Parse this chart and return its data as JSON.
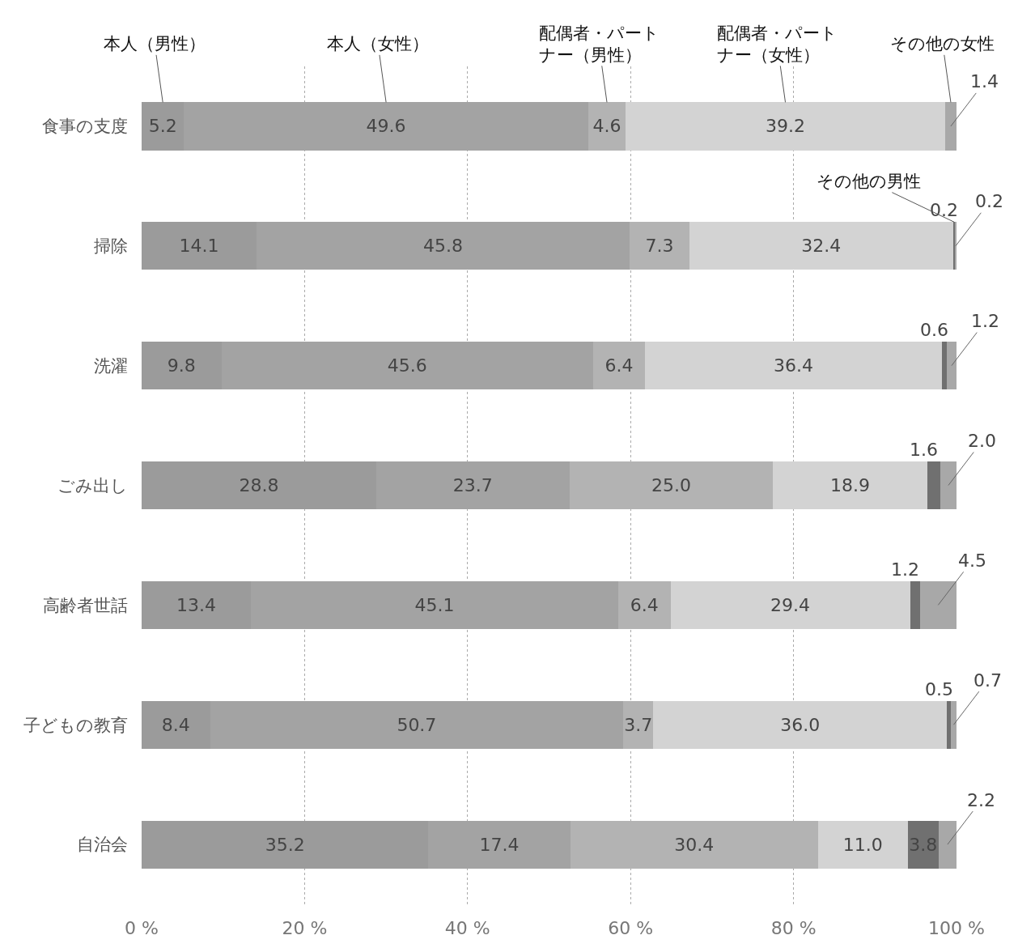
{
  "chart_data": {
    "type": "bar",
    "orientation": "horizontal",
    "stacked": true,
    "categories": [
      "食事の支度",
      "掃除",
      "洗濯",
      "ごみ出し",
      "高齢者世話",
      "子どもの教育",
      "自治会"
    ],
    "series": [
      {
        "name": "本人（男性）",
        "color": "#9b9b9b",
        "values": [
          5.2,
          14.1,
          9.8,
          28.8,
          13.4,
          8.4,
          35.2
        ],
        "value_labels": [
          "5.2",
          "14.1",
          "9.8",
          "28.8",
          "13.4",
          "8.4",
          "35.2"
        ]
      },
      {
        "name": "本人（女性）",
        "color": "#a3a3a3",
        "values": [
          49.6,
          45.8,
          45.6,
          23.7,
          45.1,
          50.7,
          17.4
        ],
        "value_labels": [
          "49.6",
          "45.8",
          "45.6",
          "23.7",
          "45.1",
          "50.7",
          "17.4"
        ]
      },
      {
        "name": "配偶者・パートナー（男性）",
        "color": "#b3b3b3",
        "values": [
          4.6,
          7.3,
          6.4,
          25.0,
          6.4,
          3.7,
          30.4
        ],
        "value_labels": [
          "4.6",
          "7.3",
          "6.4",
          "25.0",
          "6.4",
          "3.7",
          "30.4"
        ]
      },
      {
        "name": "配偶者・パートナー（女性）",
        "color": "#d3d3d3",
        "values": [
          39.2,
          32.4,
          36.4,
          18.9,
          29.4,
          36.0,
          11.0
        ],
        "value_labels": [
          "39.2",
          "32.4",
          "36.4",
          "18.9",
          "29.4",
          "36.0",
          "11.0"
        ]
      },
      {
        "name": "その他の男性",
        "color": "#707070",
        "values": [
          null,
          0.2,
          0.6,
          1.6,
          1.2,
          0.5,
          3.8
        ],
        "value_labels": [
          null,
          "0.2",
          "0.6",
          "1.6",
          "1.2",
          "0.5",
          "3.8"
        ]
      },
      {
        "name": "その他の女性",
        "color": "#a8a8a8",
        "values": [
          1.4,
          0.2,
          1.2,
          2.0,
          4.5,
          0.7,
          2.2
        ],
        "value_labels": [
          "1.4",
          "0.2",
          "1.2",
          "2.0",
          "4.5",
          "0.7",
          "2.2"
        ]
      }
    ],
    "xlim": [
      0,
      100
    ],
    "xticks": [
      {
        "value": 0,
        "label": "0 %"
      },
      {
        "value": 20,
        "label": "20 %"
      },
      {
        "value": 40,
        "label": "40 %"
      },
      {
        "value": 60,
        "label": "60 %"
      },
      {
        "value": 80,
        "label": "80 %"
      },
      {
        "value": 100,
        "label": "100 %"
      }
    ],
    "grid": "x",
    "legend": false
  }
}
